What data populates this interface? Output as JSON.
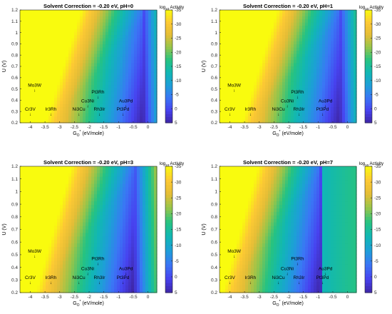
{
  "chart_data": [
    {
      "type": "heatmap",
      "title": "Solvent Correction = -0.20 eV, pH=0",
      "ph": 0,
      "xlabel_main": "G",
      "xlabel_sub": "O",
      "xlabel_sup": "*",
      "xlabel_tail": " (eV/mole)",
      "ylabel": "U (V)",
      "colorbar_label": "log",
      "colorbar_sub": "10",
      "colorbar_tail": " Activity",
      "xlim": [
        -4.35,
        0.3
      ],
      "ylim": [
        0.2,
        1.2
      ],
      "xticks": [
        -4,
        -3.5,
        -3,
        -2.5,
        -2,
        -1.5,
        -1,
        -0.5,
        0
      ],
      "yticks": [
        0.2,
        0.3,
        0.4,
        0.5,
        0.6,
        0.7,
        0.8,
        0.9,
        1,
        1.1,
        1.2
      ],
      "clim": [
        -35,
        5
      ],
      "cticks": [
        5,
        0,
        -5,
        -10,
        -15,
        -20,
        -25,
        -30,
        -35
      ],
      "points": [
        {
          "label": "Mo3W",
          "x": -3.85,
          "y": 0.5
        },
        {
          "label": "Cr3V",
          "x": -4.0,
          "y": 0.29
        },
        {
          "label": "Ir3Rh",
          "x": -3.3,
          "y": 0.29
        },
        {
          "label": "Ni3Cu",
          "x": -2.35,
          "y": 0.29
        },
        {
          "label": "Cu3Ni",
          "x": -2.05,
          "y": 0.36
        },
        {
          "label": "Pt3Rh",
          "x": -1.7,
          "y": 0.44
        },
        {
          "label": "Rh3Ir",
          "x": -1.65,
          "y": 0.29
        },
        {
          "label": "Pt3Pd",
          "x": -0.85,
          "y": 0.29
        },
        {
          "label": "Au3Pd",
          "x": -0.75,
          "y": 0.36
        }
      ]
    },
    {
      "type": "heatmap",
      "title": "Solvent Correction = -0.20 eV, pH=1",
      "ph": 1,
      "xlabel_main": "G",
      "xlabel_sub": "O",
      "xlabel_sup": "*",
      "xlabel_tail": " (eV/mole)",
      "ylabel": "U (V)",
      "colorbar_label": "log",
      "colorbar_sub": "10",
      "colorbar_tail": " Activity",
      "xlim": [
        -4.35,
        0.3
      ],
      "ylim": [
        0.2,
        1.2
      ],
      "xticks": [
        -4,
        -3.5,
        -3,
        -2.5,
        -2,
        -1.5,
        -1,
        -0.5,
        0
      ],
      "yticks": [
        0.2,
        0.3,
        0.4,
        0.5,
        0.6,
        0.7,
        0.8,
        0.9,
        1,
        1.1,
        1.2
      ],
      "clim": [
        -35,
        5
      ],
      "cticks": [
        5,
        0,
        -5,
        -10,
        -15,
        -20,
        -25,
        -30,
        -35
      ],
      "points": [
        {
          "label": "Mo3W",
          "x": -3.85,
          "y": 0.5
        },
        {
          "label": "Cr3V",
          "x": -4.0,
          "y": 0.29
        },
        {
          "label": "Ir3Rh",
          "x": -3.3,
          "y": 0.29
        },
        {
          "label": "Ni3Cu",
          "x": -2.35,
          "y": 0.29
        },
        {
          "label": "Cu3Ni",
          "x": -2.05,
          "y": 0.36
        },
        {
          "label": "Pt3Rh",
          "x": -1.7,
          "y": 0.44
        },
        {
          "label": "Rh3Ir",
          "x": -1.65,
          "y": 0.29
        },
        {
          "label": "Pt3Pd",
          "x": -0.85,
          "y": 0.29
        },
        {
          "label": "Au3Pd",
          "x": -0.75,
          "y": 0.36
        }
      ]
    },
    {
      "type": "heatmap",
      "title": "Solvent Correction = -0.20 eV, pH=3",
      "ph": 3,
      "xlabel_main": "G",
      "xlabel_sub": "O",
      "xlabel_sup": "*",
      "xlabel_tail": " (eV/mole)",
      "ylabel": "U (V)",
      "colorbar_label": "log",
      "colorbar_sub": "10",
      "colorbar_tail": " Activity",
      "xlim": [
        -4.35,
        0.3
      ],
      "ylim": [
        0.2,
        1.2
      ],
      "xticks": [
        -4,
        -3.5,
        -3,
        -2.5,
        -2,
        -1.5,
        -1,
        -0.5,
        0
      ],
      "yticks": [
        0.2,
        0.3,
        0.4,
        0.5,
        0.6,
        0.7,
        0.8,
        0.9,
        1,
        1.1,
        1.2
      ],
      "clim": [
        -35,
        5
      ],
      "cticks": [
        5,
        0,
        -5,
        -10,
        -15,
        -20,
        -25,
        -30,
        -35
      ],
      "points": [
        {
          "label": "Mo3W",
          "x": -3.85,
          "y": 0.5
        },
        {
          "label": "Cr3V",
          "x": -4.0,
          "y": 0.29
        },
        {
          "label": "Ir3Rh",
          "x": -3.3,
          "y": 0.29
        },
        {
          "label": "Ni3Cu",
          "x": -2.35,
          "y": 0.29
        },
        {
          "label": "Cu3Ni",
          "x": -2.05,
          "y": 0.36
        },
        {
          "label": "Pt3Rh",
          "x": -1.7,
          "y": 0.44
        },
        {
          "label": "Rh3Ir",
          "x": -1.65,
          "y": 0.29
        },
        {
          "label": "Pt3Pd",
          "x": -0.85,
          "y": 0.29
        },
        {
          "label": "Au3Pd",
          "x": -0.75,
          "y": 0.36
        }
      ]
    },
    {
      "type": "heatmap",
      "title": "Solvent Correction = -0.20 eV, pH=7",
      "ph": 7,
      "xlabel_main": "G",
      "xlabel_sub": "O",
      "xlabel_sup": "*",
      "xlabel_tail": " (eV/mole)",
      "ylabel": "U (V)",
      "colorbar_label": "log",
      "colorbar_sub": "10",
      "colorbar_tail": " Activity",
      "xlim": [
        -4.35,
        0.3
      ],
      "ylim": [
        0.2,
        1.2
      ],
      "xticks": [
        -4,
        -3.5,
        -3,
        -2.5,
        -2,
        -1.5,
        -1,
        -0.5,
        0
      ],
      "yticks": [
        0.2,
        0.3,
        0.4,
        0.5,
        0.6,
        0.7,
        0.8,
        0.9,
        1,
        1.1,
        1.2
      ],
      "clim": [
        -35,
        5
      ],
      "cticks": [
        5,
        0,
        -5,
        -10,
        -15,
        -20,
        -25,
        -30,
        -35
      ],
      "points": [
        {
          "label": "Mo3W",
          "x": -3.85,
          "y": 0.5
        },
        {
          "label": "Cr3V",
          "x": -4.0,
          "y": 0.29
        },
        {
          "label": "Ir3Rh",
          "x": -3.3,
          "y": 0.29
        },
        {
          "label": "Ni3Cu",
          "x": -2.35,
          "y": 0.29
        },
        {
          "label": "Cu3Ni",
          "x": -2.05,
          "y": 0.36
        },
        {
          "label": "Pt3Rh",
          "x": -1.7,
          "y": 0.44
        },
        {
          "label": "Rh3Ir",
          "x": -1.65,
          "y": 0.29
        },
        {
          "label": "Pt3Pd",
          "x": -0.85,
          "y": 0.29
        },
        {
          "label": "Au3Pd",
          "x": -0.75,
          "y": 0.36
        }
      ]
    }
  ],
  "colormap": [
    "#3e26a8",
    "#4743f0",
    "#3a77f5",
    "#1d9fd7",
    "#11b7b4",
    "#26c381",
    "#95c54b",
    "#e4bd36",
    "#fdc934",
    "#f9fb0e"
  ]
}
